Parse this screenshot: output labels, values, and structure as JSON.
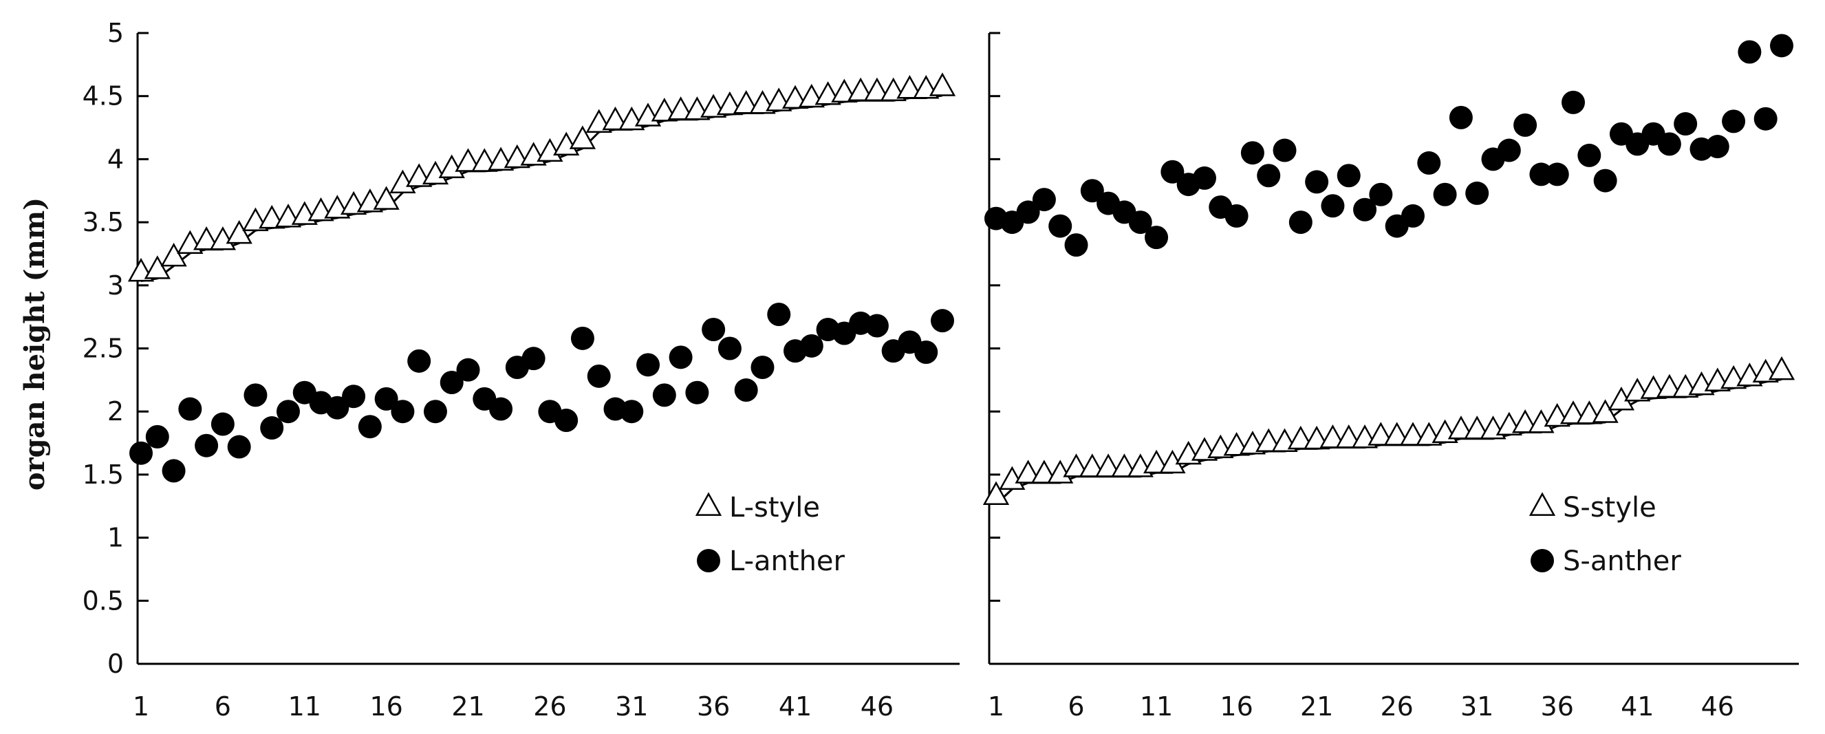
{
  "ylabel": "organ height (mm)",
  "chart_data": [
    {
      "type": "scatter",
      "xlabel": "",
      "ylabel": "organ height (mm)",
      "ylim": [
        0,
        5
      ],
      "y_ticks": [
        "0",
        "0.5",
        "1",
        "1.5",
        "2",
        "2.5",
        "3",
        "3.5",
        "4",
        "4.5",
        "5"
      ],
      "xlim": [
        1,
        50
      ],
      "x_ticks": [
        "1",
        "6",
        "11",
        "16",
        "21",
        "26",
        "31",
        "36",
        "41",
        "46"
      ],
      "legend_position": "bottom-right",
      "grid": false,
      "series": [
        {
          "name": "L-style",
          "marker": "open-triangle",
          "x": [
            1,
            2,
            3,
            4,
            5,
            6,
            7,
            8,
            9,
            10,
            11,
            12,
            13,
            14,
            15,
            16,
            17,
            18,
            19,
            20,
            21,
            22,
            23,
            24,
            25,
            26,
            27,
            28,
            29,
            30,
            31,
            32,
            33,
            34,
            35,
            36,
            37,
            38,
            39,
            40,
            41,
            42,
            43,
            44,
            45,
            46,
            47,
            48,
            49,
            50
          ],
          "y": [
            3.1,
            3.12,
            3.22,
            3.32,
            3.35,
            3.35,
            3.4,
            3.5,
            3.52,
            3.53,
            3.55,
            3.58,
            3.6,
            3.63,
            3.65,
            3.67,
            3.8,
            3.85,
            3.87,
            3.92,
            3.97,
            3.97,
            3.98,
            4.0,
            4.02,
            4.05,
            4.1,
            4.15,
            4.28,
            4.3,
            4.3,
            4.33,
            4.37,
            4.38,
            4.38,
            4.4,
            4.42,
            4.43,
            4.43,
            4.45,
            4.47,
            4.48,
            4.5,
            4.52,
            4.53,
            4.53,
            4.53,
            4.55,
            4.55,
            4.57
          ]
        },
        {
          "name": "L-anther",
          "marker": "filled-circle",
          "x": [
            1,
            2,
            3,
            4,
            5,
            6,
            7,
            8,
            9,
            10,
            11,
            12,
            13,
            14,
            15,
            16,
            17,
            18,
            19,
            20,
            21,
            22,
            23,
            24,
            25,
            26,
            27,
            28,
            29,
            30,
            31,
            32,
            33,
            34,
            35,
            36,
            37,
            38,
            39,
            40,
            41,
            42,
            43,
            44,
            45,
            46,
            47,
            48,
            49,
            50
          ],
          "y": [
            1.67,
            1.8,
            1.53,
            2.02,
            1.73,
            1.9,
            1.72,
            2.13,
            1.87,
            2.0,
            2.15,
            2.07,
            2.03,
            2.12,
            1.88,
            2.1,
            2.0,
            2.4,
            2.0,
            2.23,
            2.33,
            2.1,
            2.02,
            2.35,
            2.42,
            2.0,
            1.93,
            2.58,
            2.28,
            2.02,
            2.0,
            2.37,
            2.13,
            2.43,
            2.15,
            2.65,
            2.5,
            2.17,
            2.35,
            2.77,
            2.48,
            2.52,
            2.65,
            2.62,
            2.7,
            2.68,
            2.48,
            2.55,
            2.47,
            2.72
          ]
        }
      ]
    },
    {
      "type": "scatter",
      "xlabel": "",
      "ylabel": "",
      "ylim": [
        0,
        5
      ],
      "xlim": [
        1,
        50
      ],
      "x_ticks": [
        "1",
        "6",
        "11",
        "16",
        "21",
        "26",
        "31",
        "36",
        "41",
        "46"
      ],
      "legend_position": "bottom-right",
      "grid": false,
      "series": [
        {
          "name": "S-style",
          "marker": "open-triangle",
          "x": [
            1,
            2,
            3,
            4,
            5,
            6,
            7,
            8,
            9,
            10,
            11,
            12,
            13,
            14,
            15,
            16,
            17,
            18,
            19,
            20,
            21,
            22,
            23,
            24,
            25,
            26,
            27,
            28,
            29,
            30,
            31,
            32,
            33,
            34,
            35,
            36,
            37,
            38,
            39,
            40,
            41,
            42,
            43,
            44,
            45,
            46,
            47,
            48,
            49,
            50
          ],
          "y": [
            1.33,
            1.45,
            1.5,
            1.5,
            1.5,
            1.55,
            1.55,
            1.55,
            1.55,
            1.55,
            1.58,
            1.58,
            1.65,
            1.68,
            1.7,
            1.72,
            1.73,
            1.75,
            1.75,
            1.77,
            1.77,
            1.78,
            1.78,
            1.78,
            1.8,
            1.8,
            1.8,
            1.8,
            1.82,
            1.85,
            1.85,
            1.85,
            1.88,
            1.9,
            1.9,
            1.95,
            1.97,
            1.97,
            1.98,
            2.08,
            2.15,
            2.17,
            2.18,
            2.18,
            2.2,
            2.23,
            2.25,
            2.27,
            2.3,
            2.32
          ]
        },
        {
          "name": "S-anther",
          "marker": "filled-circle",
          "x": [
            1,
            2,
            3,
            4,
            5,
            6,
            7,
            8,
            9,
            10,
            11,
            12,
            13,
            14,
            15,
            16,
            17,
            18,
            19,
            20,
            21,
            22,
            23,
            24,
            25,
            26,
            27,
            28,
            29,
            30,
            31,
            32,
            33,
            34,
            35,
            36,
            37,
            38,
            39,
            40,
            41,
            42,
            43,
            44,
            45,
            46,
            47,
            48,
            49,
            50
          ],
          "y": [
            3.53,
            3.5,
            3.58,
            3.68,
            3.47,
            3.32,
            3.75,
            3.65,
            3.58,
            3.5,
            3.38,
            3.9,
            3.8,
            3.85,
            3.62,
            3.55,
            4.05,
            3.87,
            4.07,
            3.5,
            3.82,
            3.63,
            3.87,
            3.6,
            3.72,
            3.47,
            3.55,
            3.97,
            3.72,
            4.33,
            3.73,
            4.0,
            4.07,
            4.27,
            3.88,
            3.88,
            4.45,
            4.03,
            3.83,
            4.2,
            4.12,
            4.2,
            4.12,
            4.28,
            4.08,
            4.1,
            4.3,
            4.85,
            4.32,
            4.9
          ]
        }
      ]
    }
  ]
}
